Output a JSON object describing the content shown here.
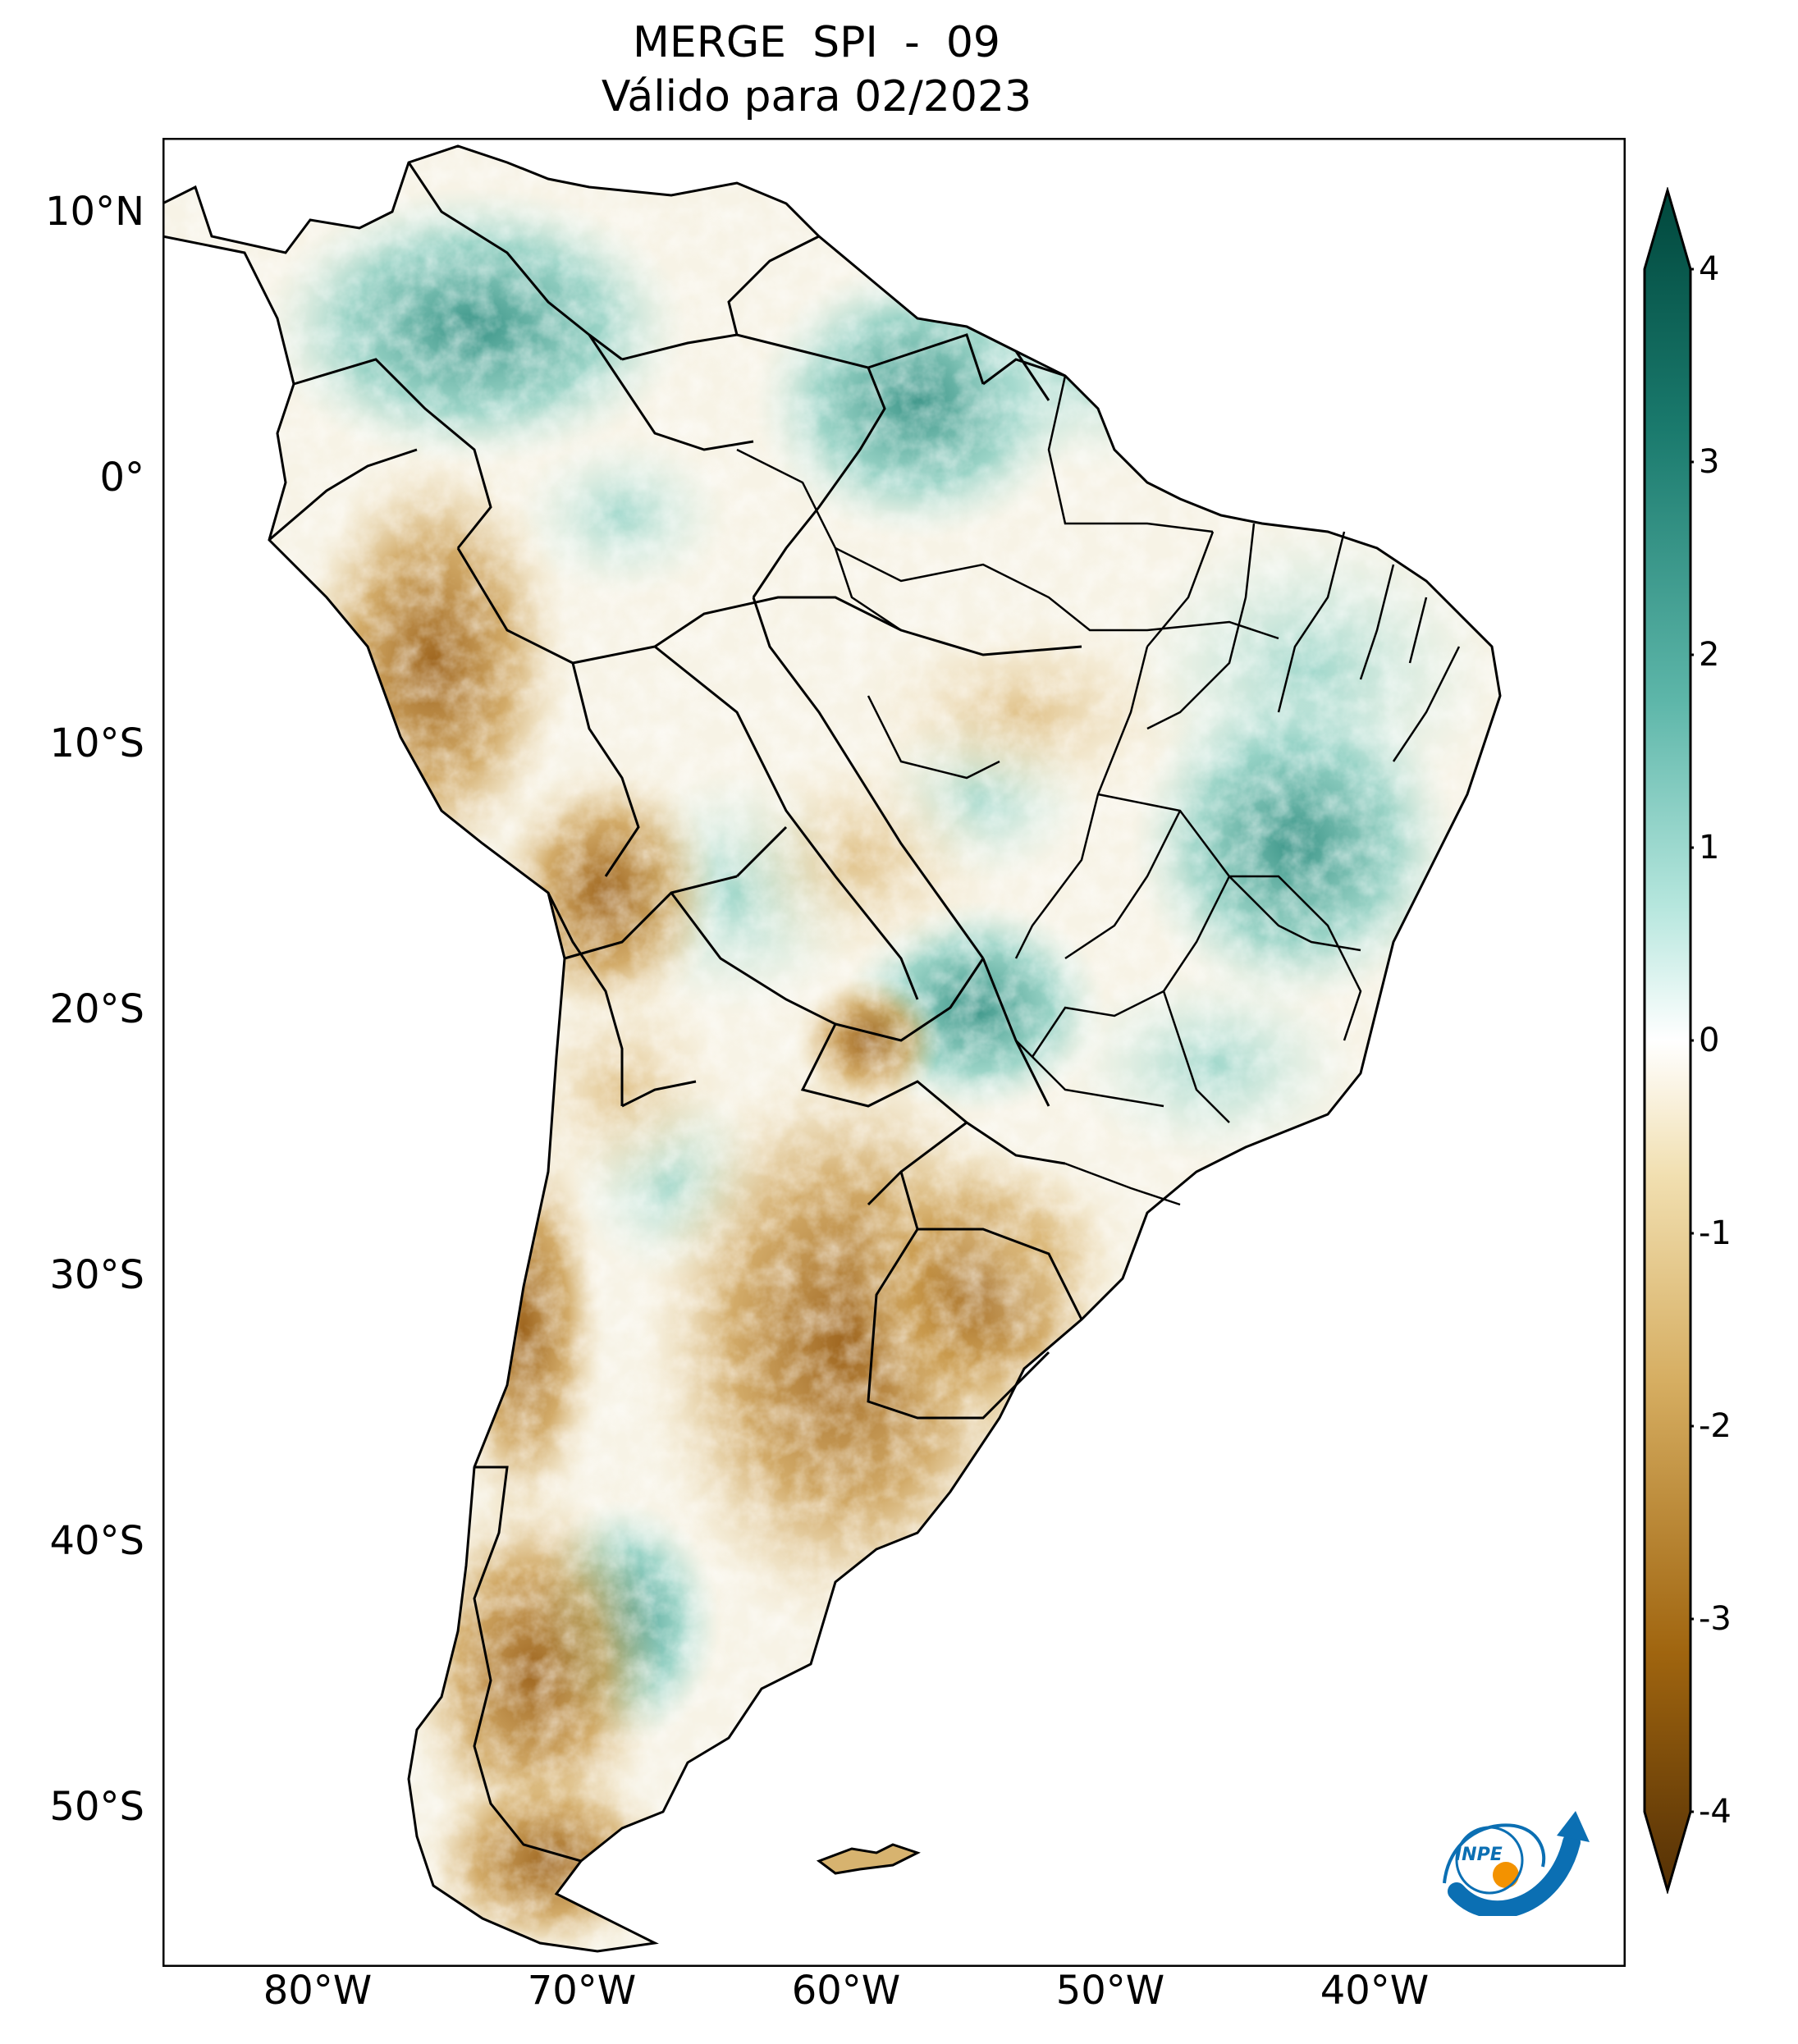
{
  "title": {
    "line1": "MERGE   SPI - 09",
    "line2": "Válido para 02/2023"
  },
  "map": {
    "lat_labels": [
      {
        "label": "10°N",
        "lat": 10
      },
      {
        "label": "0°",
        "lat": 0
      },
      {
        "label": "10°S",
        "lat": -10
      },
      {
        "label": "20°S",
        "lat": -20
      },
      {
        "label": "30°S",
        "lat": -30
      },
      {
        "label": "40°S",
        "lat": -40
      },
      {
        "label": "50°S",
        "lat": -50
      }
    ],
    "lon_labels": [
      {
        "label": "80°W",
        "lon": -80
      },
      {
        "label": "70°W",
        "lon": -70
      },
      {
        "label": "60°W",
        "lon": -60
      },
      {
        "label": "50°W",
        "lon": -50
      },
      {
        "label": "40°W",
        "lon": -40
      }
    ],
    "extent": {
      "lon_min": -85,
      "lon_max": -30,
      "lat_min": -56,
      "lat_max": 13
    }
  },
  "colorbar": {
    "ticks": [
      "4",
      "3",
      "2",
      "1",
      "0",
      "-1",
      "-2",
      "-3",
      "-4"
    ],
    "range": [
      -4,
      4
    ],
    "extend": "both",
    "colors": {
      "wet_max": "#00473c",
      "wet_mid": "#3a9e92",
      "wet_low": "#b5e6dd",
      "neutral": "#ffffff",
      "dry_low": "#f1dfb0",
      "dry_mid": "#c08b35",
      "dry_max": "#543005"
    }
  },
  "logo": {
    "text": "INPE"
  }
}
